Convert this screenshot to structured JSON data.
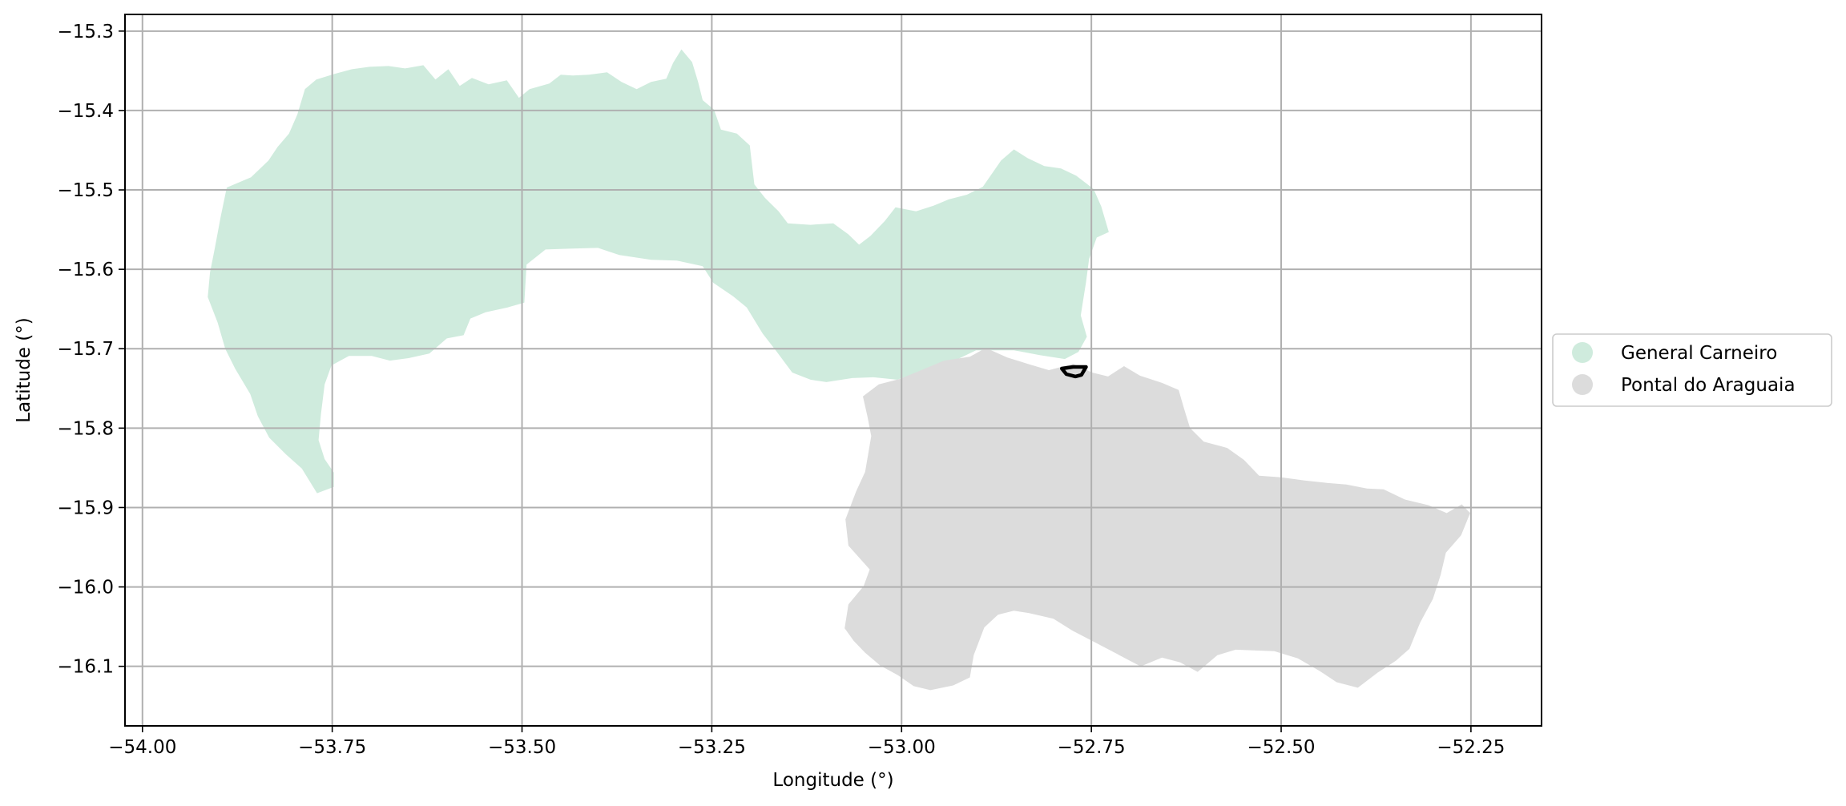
{
  "map": {
    "xlabel": "Longitude (°)",
    "ylabel": "Latitude (°)",
    "xlim": [
      -54.023,
      -52.157
    ],
    "ylim": [
      -16.175,
      -15.279
    ],
    "grid": true,
    "x_ticks": [
      -54.0,
      -53.75,
      -53.5,
      -53.25,
      -53.0,
      -52.75,
      -52.5,
      -52.25
    ],
    "x_tick_labels": [
      "−54.00",
      "−53.75",
      "−53.50",
      "−53.25",
      "−53.00",
      "−52.75",
      "−52.50",
      "−52.25"
    ],
    "y_ticks": [
      -15.3,
      -15.4,
      -15.5,
      -15.6,
      -15.7,
      -15.8,
      -15.9,
      -16.0,
      -16.1
    ],
    "y_tick_labels": [
      "−15.3",
      "−15.4",
      "−15.5",
      "−15.6",
      "−15.7",
      "−15.8",
      "−15.9",
      "−16.0",
      "−16.1"
    ],
    "legend": {
      "placement": "center-left outside right of plot",
      "entries": [
        {
          "label": "General Carneiro",
          "color": "#cfebdd"
        },
        {
          "label": "Pontal do Araguaia",
          "color": "#dcdcdc"
        }
      ]
    },
    "colors": {
      "grid": "#b0b0b0",
      "highlight_outline": "#000000"
    },
    "regions": [
      {
        "name": "General Carneiro",
        "color": "#cfebdd",
        "coordinates": [
          [
            -53.911,
            -15.604
          ],
          [
            -53.905,
            -15.575
          ],
          [
            -53.897,
            -15.534
          ],
          [
            -53.889,
            -15.497
          ],
          [
            -53.857,
            -15.484
          ],
          [
            -53.834,
            -15.463
          ],
          [
            -53.822,
            -15.446
          ],
          [
            -53.807,
            -15.429
          ],
          [
            -53.796,
            -15.405
          ],
          [
            -53.786,
            -15.373
          ],
          [
            -53.771,
            -15.361
          ],
          [
            -53.747,
            -15.354
          ],
          [
            -53.724,
            -15.348
          ],
          [
            -53.701,
            -15.345
          ],
          [
            -53.676,
            -15.344
          ],
          [
            -53.654,
            -15.347
          ],
          [
            -53.63,
            -15.343
          ],
          [
            -53.614,
            -15.361
          ],
          [
            -53.597,
            -15.348
          ],
          [
            -53.582,
            -15.369
          ],
          [
            -53.566,
            -15.359
          ],
          [
            -53.544,
            -15.367
          ],
          [
            -53.52,
            -15.362
          ],
          [
            -53.504,
            -15.384
          ],
          [
            -53.49,
            -15.373
          ],
          [
            -53.464,
            -15.366
          ],
          [
            -53.449,
            -15.355
          ],
          [
            -53.433,
            -15.356
          ],
          [
            -53.412,
            -15.355
          ],
          [
            -53.388,
            -15.352
          ],
          [
            -53.369,
            -15.364
          ],
          [
            -53.349,
            -15.373
          ],
          [
            -53.33,
            -15.364
          ],
          [
            -53.31,
            -15.36
          ],
          [
            -53.301,
            -15.34
          ],
          [
            -53.29,
            -15.323
          ],
          [
            -53.276,
            -15.339
          ],
          [
            -53.268,
            -15.364
          ],
          [
            -53.262,
            -15.387
          ],
          [
            -53.247,
            -15.399
          ],
          [
            -53.238,
            -15.424
          ],
          [
            -53.217,
            -15.429
          ],
          [
            -53.2,
            -15.444
          ],
          [
            -53.194,
            -15.493
          ],
          [
            -53.18,
            -15.51
          ],
          [
            -53.162,
            -15.527
          ],
          [
            -53.15,
            -15.542
          ],
          [
            -53.12,
            -15.544
          ],
          [
            -53.09,
            -15.542
          ],
          [
            -53.07,
            -15.556
          ],
          [
            -53.056,
            -15.569
          ],
          [
            -53.041,
            -15.558
          ],
          [
            -53.022,
            -15.539
          ],
          [
            -53.008,
            -15.522
          ],
          [
            -52.981,
            -15.527
          ],
          [
            -52.958,
            -15.52
          ],
          [
            -52.938,
            -15.512
          ],
          [
            -52.914,
            -15.506
          ],
          [
            -52.893,
            -15.496
          ],
          [
            -52.869,
            -15.463
          ],
          [
            -52.852,
            -15.449
          ],
          [
            -52.834,
            -15.46
          ],
          [
            -52.812,
            -15.47
          ],
          [
            -52.79,
            -15.473
          ],
          [
            -52.77,
            -15.482
          ],
          [
            -52.747,
            -15.499
          ],
          [
            -52.737,
            -15.521
          ],
          [
            -52.727,
            -15.553
          ],
          [
            -52.743,
            -15.56
          ],
          [
            -52.753,
            -15.587
          ],
          [
            -52.757,
            -15.616
          ],
          [
            -52.764,
            -15.658
          ],
          [
            -52.756,
            -15.685
          ],
          [
            -52.767,
            -15.704
          ],
          [
            -52.785,
            -15.713
          ],
          [
            -52.818,
            -15.708
          ],
          [
            -52.852,
            -15.702
          ],
          [
            -52.881,
            -15.702
          ],
          [
            -52.902,
            -15.702
          ],
          [
            -52.939,
            -15.719
          ],
          [
            -52.978,
            -15.73
          ],
          [
            -53.006,
            -15.739
          ],
          [
            -53.037,
            -15.736
          ],
          [
            -53.065,
            -15.737
          ],
          [
            -53.099,
            -15.742
          ],
          [
            -53.12,
            -15.739
          ],
          [
            -53.144,
            -15.73
          ],
          [
            -53.165,
            -15.703
          ],
          [
            -53.183,
            -15.681
          ],
          [
            -53.204,
            -15.648
          ],
          [
            -53.222,
            -15.634
          ],
          [
            -53.248,
            -15.617
          ],
          [
            -53.262,
            -15.596
          ],
          [
            -53.296,
            -15.589
          ],
          [
            -53.33,
            -15.588
          ],
          [
            -53.372,
            -15.582
          ],
          [
            -53.4,
            -15.573
          ],
          [
            -53.438,
            -15.574
          ],
          [
            -53.469,
            -15.575
          ],
          [
            -53.494,
            -15.594
          ],
          [
            -53.497,
            -15.642
          ],
          [
            -53.519,
            -15.648
          ],
          [
            -53.548,
            -15.654
          ],
          [
            -53.568,
            -15.662
          ],
          [
            -53.577,
            -15.683
          ],
          [
            -53.599,
            -15.687
          ],
          [
            -53.622,
            -15.706
          ],
          [
            -53.65,
            -15.712
          ],
          [
            -53.674,
            -15.715
          ],
          [
            -53.698,
            -15.709
          ],
          [
            -53.728,
            -15.709
          ],
          [
            -53.751,
            -15.721
          ],
          [
            -53.76,
            -15.745
          ],
          [
            -53.765,
            -15.783
          ],
          [
            -53.768,
            -15.815
          ],
          [
            -53.76,
            -15.839
          ],
          [
            -53.748,
            -15.856
          ],
          [
            -53.748,
            -15.874
          ],
          [
            -53.77,
            -15.882
          ],
          [
            -53.79,
            -15.851
          ],
          [
            -53.811,
            -15.833
          ],
          [
            -53.833,
            -15.812
          ],
          [
            -53.848,
            -15.785
          ],
          [
            -53.858,
            -15.757
          ],
          [
            -53.878,
            -15.725
          ],
          [
            -53.891,
            -15.7
          ],
          [
            -53.901,
            -15.667
          ],
          [
            -53.914,
            -15.635
          ]
        ]
      },
      {
        "name": "Pontal do Araguaia",
        "color": "#dcdcdc",
        "coordinates": [
          [
            -53.03,
            -15.745
          ],
          [
            -53.002,
            -15.738
          ],
          [
            -52.974,
            -15.727
          ],
          [
            -52.944,
            -15.715
          ],
          [
            -52.91,
            -15.71
          ],
          [
            -52.889,
            -15.699
          ],
          [
            -52.861,
            -15.711
          ],
          [
            -52.834,
            -15.719
          ],
          [
            -52.806,
            -15.727
          ],
          [
            -52.774,
            -15.719
          ],
          [
            -52.749,
            -15.73
          ],
          [
            -52.728,
            -15.735
          ],
          [
            -52.707,
            -15.722
          ],
          [
            -52.686,
            -15.734
          ],
          [
            -52.657,
            -15.743
          ],
          [
            -52.635,
            -15.752
          ],
          [
            -52.628,
            -15.775
          ],
          [
            -52.62,
            -15.8
          ],
          [
            -52.602,
            -15.817
          ],
          [
            -52.571,
            -15.825
          ],
          [
            -52.549,
            -15.84
          ],
          [
            -52.529,
            -15.86
          ],
          [
            -52.5,
            -15.862
          ],
          [
            -52.469,
            -15.866
          ],
          [
            -52.44,
            -15.869
          ],
          [
            -52.414,
            -15.871
          ],
          [
            -52.387,
            -15.876
          ],
          [
            -52.365,
            -15.877
          ],
          [
            -52.337,
            -15.89
          ],
          [
            -52.306,
            -15.897
          ],
          [
            -52.282,
            -15.907
          ],
          [
            -52.262,
            -15.896
          ],
          [
            -52.251,
            -15.907
          ],
          [
            -52.263,
            -15.935
          ],
          [
            -52.283,
            -15.957
          ],
          [
            -52.29,
            -15.985
          ],
          [
            -52.3,
            -16.015
          ],
          [
            -52.317,
            -16.045
          ],
          [
            -52.331,
            -16.078
          ],
          [
            -52.349,
            -16.093
          ],
          [
            -52.373,
            -16.108
          ],
          [
            -52.399,
            -16.127
          ],
          [
            -52.427,
            -16.12
          ],
          [
            -52.449,
            -16.106
          ],
          [
            -52.478,
            -16.09
          ],
          [
            -52.509,
            -16.081
          ],
          [
            -52.537,
            -16.08
          ],
          [
            -52.56,
            -16.079
          ],
          [
            -52.584,
            -16.086
          ],
          [
            -52.61,
            -16.107
          ],
          [
            -52.633,
            -16.095
          ],
          [
            -52.657,
            -16.089
          ],
          [
            -52.685,
            -16.1
          ],
          [
            -52.715,
            -16.085
          ],
          [
            -52.745,
            -16.07
          ],
          [
            -52.775,
            -16.055
          ],
          [
            -52.8,
            -16.04
          ],
          [
            -52.832,
            -16.033
          ],
          [
            -52.852,
            -16.03
          ],
          [
            -52.873,
            -16.035
          ],
          [
            -52.891,
            -16.051
          ],
          [
            -52.905,
            -16.086
          ],
          [
            -52.91,
            -16.114
          ],
          [
            -52.932,
            -16.124
          ],
          [
            -52.962,
            -16.13
          ],
          [
            -52.984,
            -16.125
          ],
          [
            -53.005,
            -16.111
          ],
          [
            -53.028,
            -16.099
          ],
          [
            -53.048,
            -16.083
          ],
          [
            -53.063,
            -16.068
          ],
          [
            -53.075,
            -16.052
          ],
          [
            -53.07,
            -16.022
          ],
          [
            -53.05,
            -15.999
          ],
          [
            -53.042,
            -15.978
          ],
          [
            -53.057,
            -15.962
          ],
          [
            -53.07,
            -15.948
          ],
          [
            -53.074,
            -15.915
          ],
          [
            -53.06,
            -15.88
          ],
          [
            -53.048,
            -15.855
          ],
          [
            -53.04,
            -15.81
          ],
          [
            -53.045,
            -15.785
          ],
          [
            -53.051,
            -15.76
          ]
        ]
      }
    ],
    "highlight": {
      "coordinates": [
        [
          -52.789,
          -15.725
        ],
        [
          -52.774,
          -15.723
        ],
        [
          -52.757,
          -15.723
        ],
        [
          -52.763,
          -15.733
        ],
        [
          -52.771,
          -15.735
        ],
        [
          -52.783,
          -15.732
        ]
      ]
    }
  }
}
